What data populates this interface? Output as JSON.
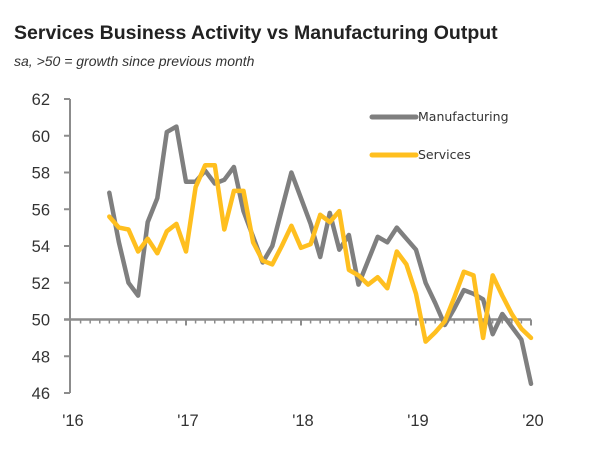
{
  "chart_data": {
    "type": "line",
    "title": "Services Business Activity vs Manufacturing Output",
    "subtitle": "sa, >50 = growth since previous month",
    "xlabel": "",
    "ylabel": "",
    "ylim": [
      46,
      62
    ],
    "yticks": [
      46,
      48,
      50,
      52,
      54,
      56,
      58,
      60,
      62
    ],
    "ytick_labels": [
      "46",
      "48",
      "50",
      "52",
      "54",
      "56",
      "58",
      "60",
      "62"
    ],
    "xlim": [
      2016.0,
      2020.0
    ],
    "xticks": [
      2016,
      2017,
      2018,
      2019,
      2020
    ],
    "xtick_labels": [
      "'16",
      "'17",
      "'18",
      "'19",
      "'20"
    ],
    "reference_line": 50,
    "grid": false,
    "legend_position": "top-right",
    "x_start": "May 2016",
    "x_frequency": "monthly",
    "series": [
      {
        "name": "Manufacturing",
        "color": "#7f7f7f",
        "values": [
          56.9,
          54.2,
          52.0,
          51.3,
          55.3,
          56.6,
          60.2,
          60.5,
          57.5,
          57.5,
          58.1,
          57.4,
          57.6,
          58.3,
          55.9,
          54.5,
          53.1,
          54.0,
          56.0,
          58.0,
          56.6,
          55.2,
          53.4,
          55.8,
          53.8,
          54.6,
          51.9,
          53.2,
          54.5,
          54.2,
          55.0,
          54.4,
          53.8,
          52.0,
          50.9,
          49.7,
          50.6,
          51.6,
          51.4,
          51.1,
          49.2,
          50.3,
          49.6,
          48.9,
          46.5
        ]
      },
      {
        "name": "Services",
        "color": "#ffbf1f",
        "values": [
          55.6,
          55.0,
          54.9,
          53.7,
          54.4,
          53.6,
          54.8,
          55.2,
          53.7,
          57.2,
          58.4,
          58.4,
          54.9,
          57.0,
          57.0,
          54.2,
          53.2,
          53.0,
          54.0,
          55.1,
          53.9,
          54.1,
          55.7,
          55.3,
          55.9,
          52.7,
          52.4,
          51.9,
          52.3,
          51.7,
          53.7,
          53.0,
          51.4,
          48.8,
          49.3,
          49.9,
          51.2,
          52.6,
          52.4,
          49.0,
          52.4,
          51.3,
          50.3,
          49.5,
          49.0
        ]
      }
    ]
  }
}
